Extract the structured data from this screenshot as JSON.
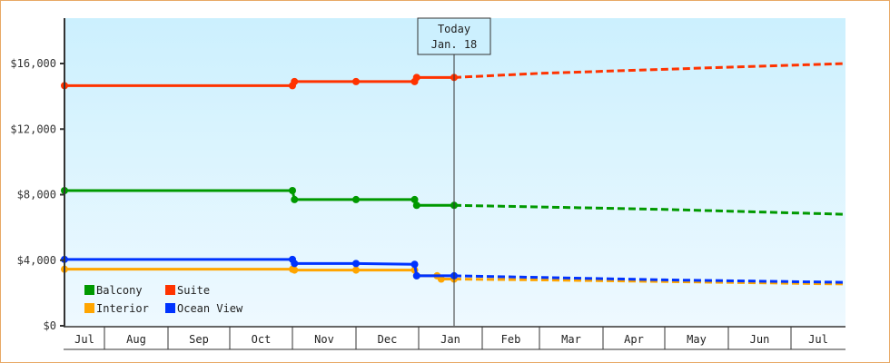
{
  "chart_data": {
    "type": "line",
    "title": "",
    "xlabel": "",
    "ylabel": "",
    "ylim": [
      0,
      18500
    ],
    "grid": false,
    "legend_position": "lower-left inside",
    "y_ticks": [
      {
        "value": 0,
        "label": "$0"
      },
      {
        "value": 4000,
        "label": "$4,000"
      },
      {
        "value": 8000,
        "label": "$8,000"
      },
      {
        "value": 12000,
        "label": "$12,000"
      },
      {
        "value": 16000,
        "label": "$16,000"
      }
    ],
    "months": [
      "Jul",
      "Aug",
      "Sep",
      "Oct",
      "Nov",
      "Dec",
      "Jan",
      "Feb",
      "Mar",
      "Apr",
      "May",
      "Jun",
      "Jul"
    ],
    "today_marker": {
      "line1": "Today",
      "line2": "Jan. 18"
    },
    "series": [
      {
        "name": "Balcony",
        "color": "#009900",
        "historical": [
          {
            "date": "Jul 1",
            "value": 8250
          },
          {
            "date": "Nov 1",
            "value": 8250
          },
          {
            "date": "Nov 2",
            "value": 7700
          },
          {
            "date": "Dec 1",
            "value": 7700
          },
          {
            "date": "Dec 30",
            "value": 7700
          },
          {
            "date": "Dec 31",
            "value": 7350
          },
          {
            "date": "Jan 18",
            "value": 7350
          }
        ],
        "forecast": [
          {
            "date": "Jan 18",
            "value": 7350
          },
          {
            "date": "Mar 1",
            "value": 7250
          },
          {
            "date": "May 1",
            "value": 7100
          },
          {
            "date": "Jul 1",
            "value": 6800
          }
        ]
      },
      {
        "name": "Suite",
        "color": "#ff3300",
        "historical": [
          {
            "date": "Jul 1",
            "value": 14650
          },
          {
            "date": "Nov 1",
            "value": 14650
          },
          {
            "date": "Nov 2",
            "value": 14900
          },
          {
            "date": "Dec 1",
            "value": 14900
          },
          {
            "date": "Dec 30",
            "value": 14900
          },
          {
            "date": "Dec 31",
            "value": 15150
          },
          {
            "date": "Jan 18",
            "value": 15150
          }
        ],
        "forecast": [
          {
            "date": "Jan 18",
            "value": 15150
          },
          {
            "date": "Mar 1",
            "value": 15400
          },
          {
            "date": "May 1",
            "value": 15650
          },
          {
            "date": "Jul 1",
            "value": 16000
          }
        ]
      },
      {
        "name": "Interior",
        "color": "#ffa500",
        "historical": [
          {
            "date": "Jul 1",
            "value": 3450
          },
          {
            "date": "Nov 1",
            "value": 3450
          },
          {
            "date": "Nov 2",
            "value": 3400
          },
          {
            "date": "Dec 1",
            "value": 3400
          },
          {
            "date": "Dec 30",
            "value": 3400
          },
          {
            "date": "Dec 31",
            "value": 3050
          },
          {
            "date": "Jan 10",
            "value": 3050
          },
          {
            "date": "Jan 12",
            "value": 2850
          },
          {
            "date": "Jan 18",
            "value": 2850
          }
        ],
        "forecast": [
          {
            "date": "Jan 18",
            "value": 2850
          },
          {
            "date": "Mar 1",
            "value": 2800
          },
          {
            "date": "May 1",
            "value": 2700
          },
          {
            "date": "Jul 1",
            "value": 2550
          }
        ]
      },
      {
        "name": "Ocean View",
        "color": "#0033ff",
        "historical": [
          {
            "date": "Jul 1",
            "value": 4050
          },
          {
            "date": "Nov 1",
            "value": 4050
          },
          {
            "date": "Nov 2",
            "value": 3800
          },
          {
            "date": "Dec 1",
            "value": 3800
          },
          {
            "date": "Dec 30",
            "value": 3750
          },
          {
            "date": "Dec 31",
            "value": 3050
          },
          {
            "date": "Jan 18",
            "value": 3050
          }
        ],
        "forecast": [
          {
            "date": "Jan 18",
            "value": 3050
          },
          {
            "date": "Mar 1",
            "value": 2950
          },
          {
            "date": "May 1",
            "value": 2800
          },
          {
            "date": "Jul 1",
            "value": 2650
          }
        ]
      }
    ]
  },
  "legend": [
    {
      "label": "Balcony",
      "color": "#009900"
    },
    {
      "label": "Suite",
      "color": "#ff3300"
    },
    {
      "label": "Interior",
      "color": "#ffa500"
    },
    {
      "label": "Ocean View",
      "color": "#0033ff"
    }
  ],
  "colors": {
    "frame_border": "#e8a965",
    "plot_bg_top": "#ccf0fe",
    "plot_bg_bottom": "#eef9ff",
    "axis": "#333333"
  }
}
